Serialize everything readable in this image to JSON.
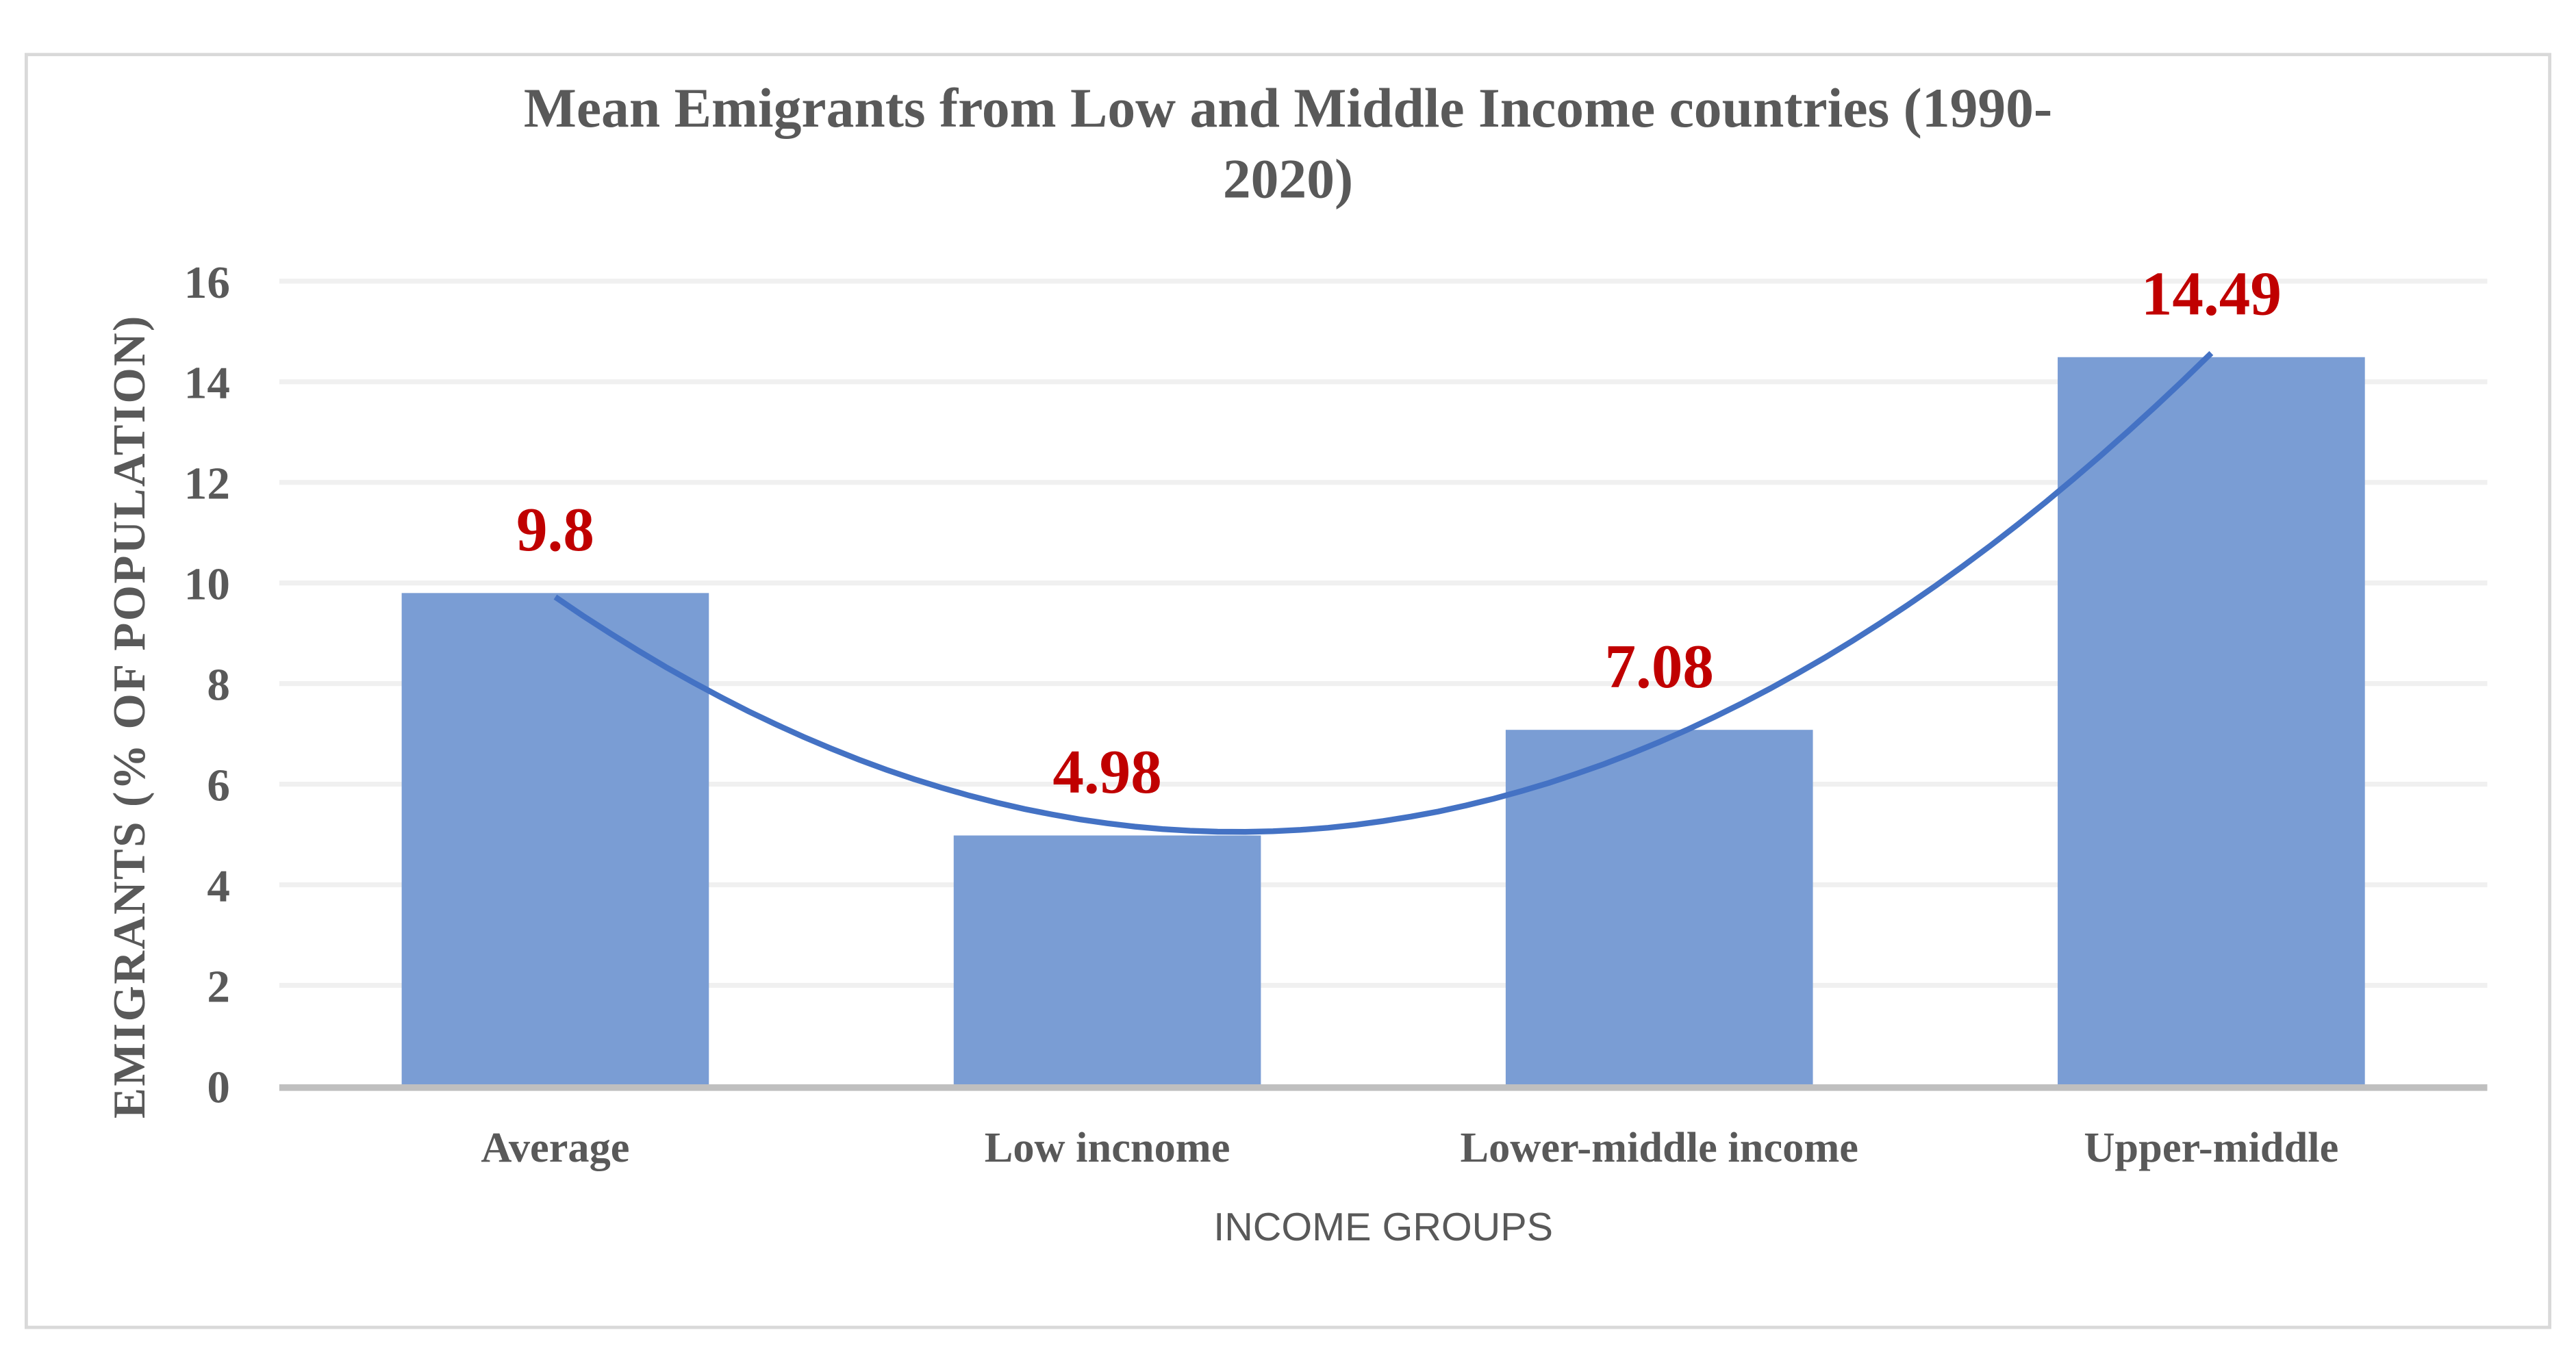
{
  "chart_data": {
    "type": "bar",
    "title_lines": [
      "Mean Emigrants from Low and Middle Income countries (1990-",
      "2020)"
    ],
    "categories": [
      "Average",
      "Low incnome",
      "Lower-middle income",
      "Upper-middle"
    ],
    "values": [
      9.8,
      4.98,
      7.08,
      14.49
    ],
    "data_labels": [
      "9.8",
      "4.98",
      "7.08",
      "14.49"
    ],
    "xlabel": "INCOME GROUPS",
    "ylabel": "EMIGRANTS (% OF POPULATION)",
    "ylim": [
      0,
      16
    ],
    "yticks": [
      "0",
      "2",
      "4",
      "6",
      "8",
      "10",
      "12",
      "14",
      "16"
    ],
    "grid": true,
    "legend": "none",
    "trendline": {
      "type": "polynomial",
      "order": 2
    },
    "colors": {
      "bar": "#7A9DD4",
      "trendline": "#4472C4",
      "data_label": "#C00000",
      "text": "#595959",
      "grid": "#F0F0F0",
      "axis": "#BFBFBF"
    }
  }
}
